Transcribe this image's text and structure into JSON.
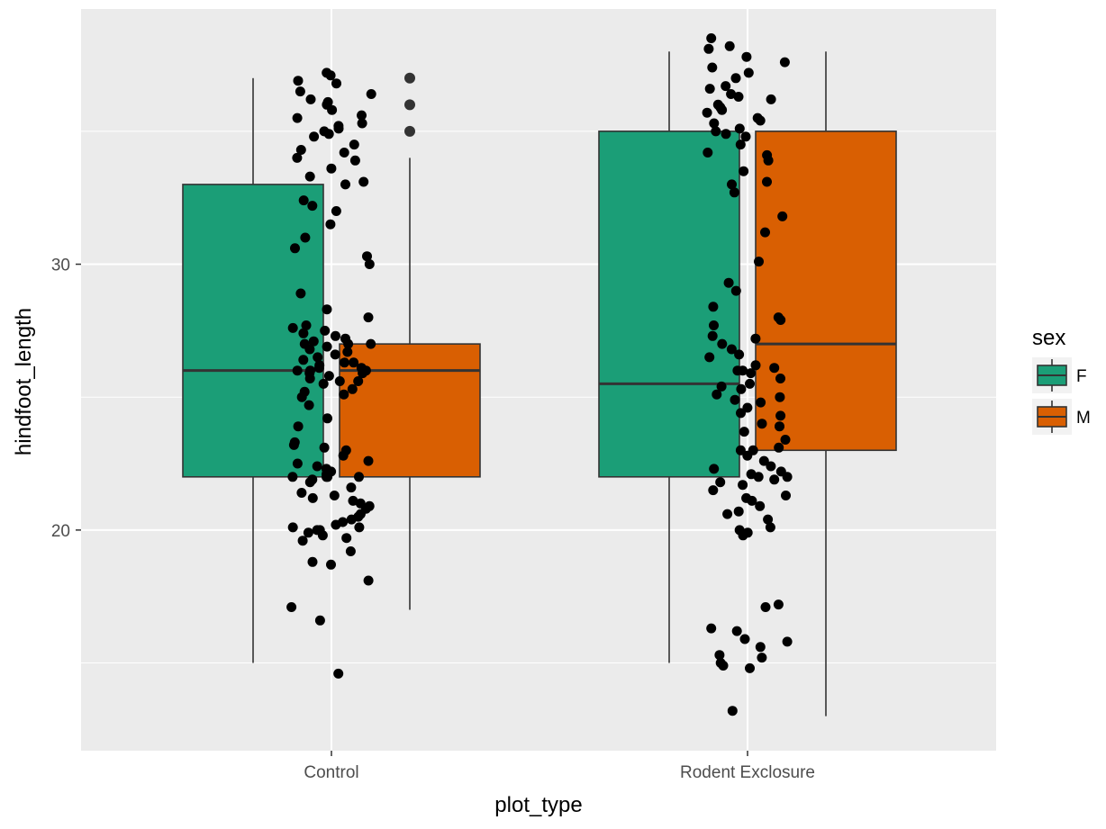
{
  "chart_data": {
    "type": "box",
    "title": "",
    "xlabel": "plot_type",
    "ylabel": "hindfoot_length",
    "categories": [
      "Control",
      "Rodent Exclosure"
    ],
    "ylim": [
      11.7,
      39.6
    ],
    "yticks": [
      20,
      30
    ],
    "grid": true,
    "legend": {
      "title": "sex",
      "position": "right",
      "entries": [
        {
          "name": "F",
          "color": "#1b9e77"
        },
        {
          "name": "M",
          "color": "#d95f02"
        }
      ]
    },
    "series": [
      {
        "name": "F",
        "color": "#1b9e77",
        "boxes": [
          {
            "category": "Control",
            "lower_whisker": 15,
            "q1": 22,
            "median": 26,
            "q3": 33,
            "upper_whisker": 37,
            "outliers": []
          },
          {
            "category": "Rodent Exclosure",
            "lower_whisker": 15,
            "q1": 22,
            "median": 25.5,
            "q3": 35,
            "upper_whisker": 38,
            "outliers": []
          }
        ]
      },
      {
        "name": "M",
        "color": "#d95f02",
        "boxes": [
          {
            "category": "Control",
            "lower_whisker": 17,
            "q1": 22,
            "median": 26,
            "q3": 27,
            "upper_whisker": 34,
            "outliers": [
              35,
              36,
              37
            ]
          },
          {
            "category": "Rodent Exclosure",
            "lower_whisker": 13,
            "q1": 23,
            "median": 27,
            "q3": 35,
            "upper_whisker": 38,
            "outliers": []
          }
        ]
      }
    ],
    "jitter_points": {
      "color": "#000000",
      "note": "jittered raw observations overlaid on both plot types",
      "Control": [
        37.1,
        36.8,
        36.5,
        36.2,
        36.0,
        35.8,
        35.5,
        35.3,
        35.1,
        35.0,
        34.8,
        34.5,
        34.2,
        34.0,
        33.6,
        33.3,
        33.0,
        32.4,
        32.0,
        31.5,
        31.0,
        30.6,
        30.3,
        30.0,
        28.9,
        28.3,
        28.0,
        27.7,
        27.5,
        27.3,
        27.2,
        27.1,
        27.0,
        27.0,
        26.9,
        26.8,
        26.6,
        26.5,
        26.4,
        26.3,
        26.2,
        26.1,
        26.0,
        26.0,
        26.0,
        25.9,
        25.8,
        25.7,
        25.6,
        25.5,
        25.3,
        25.1,
        25.0,
        24.7,
        24.2,
        23.9,
        23.3,
        23.1,
        23.0,
        22.8,
        22.6,
        22.4,
        22.3,
        22.2,
        22.1,
        22.0,
        22.0,
        22.0,
        21.9,
        21.8,
        21.6,
        21.4,
        21.2,
        21.1,
        21.0,
        20.9,
        20.8,
        20.6,
        20.4,
        20.3,
        20.2,
        20.1,
        20.0,
        20.0,
        19.9,
        19.8,
        19.7,
        19.2,
        18.8,
        18.1,
        17.1,
        16.6,
        14.6,
        37.2,
        36.9,
        36.4,
        36.1,
        35.6,
        35.2,
        34.9,
        34.3,
        33.9,
        33.1,
        32.2,
        27.6,
        27.4,
        27.0,
        26.7,
        26.3,
        26.1,
        25.9,
        25.6,
        25.2,
        23.2,
        22.5,
        22.0,
        21.3,
        20.5,
        20.1,
        19.6,
        18.7
      ],
      "Rodent Exclosure": [
        38.5,
        38.2,
        37.8,
        37.4,
        37.0,
        36.7,
        36.4,
        36.2,
        36.0,
        35.9,
        35.7,
        35.5,
        35.3,
        35.1,
        35.0,
        34.8,
        34.5,
        34.2,
        33.9,
        33.5,
        33.1,
        32.7,
        31.8,
        31.2,
        30.1,
        29.3,
        29.0,
        28.4,
        28.0,
        27.7,
        27.3,
        27.0,
        26.8,
        26.5,
        26.2,
        26.0,
        26.0,
        25.9,
        25.7,
        25.5,
        25.3,
        25.1,
        25.0,
        24.8,
        24.6,
        24.3,
        24.0,
        23.7,
        23.4,
        23.1,
        23.0,
        22.8,
        22.6,
        22.4,
        22.2,
        22.1,
        22.0,
        22.0,
        21.9,
        21.7,
        21.5,
        21.3,
        21.1,
        20.9,
        20.7,
        20.4,
        20.1,
        19.9,
        19.8,
        17.2,
        17.1,
        16.3,
        16.2,
        15.9,
        15.8,
        15.6,
        15.3,
        15.2,
        15.0,
        14.9,
        14.8,
        13.2,
        38.1,
        37.6,
        37.2,
        36.6,
        36.3,
        35.8,
        35.4,
        34.9,
        34.1,
        33.0,
        27.9,
        27.2,
        26.6,
        26.1,
        25.4,
        24.9,
        24.4,
        23.9,
        23.0,
        22.3,
        21.8,
        21.2,
        20.6,
        20.0
      ]
    }
  }
}
